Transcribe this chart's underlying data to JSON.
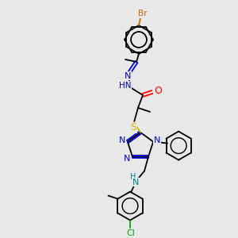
{
  "bg_color": "#e8e8e8",
  "bond_color": "#000000",
  "atom_colors": {
    "N": "#0000cc",
    "O": "#ff0000",
    "S": "#ccbb00",
    "Br": "#cc6600",
    "Cl": "#00aa00",
    "teal": "#008080"
  },
  "figsize": [
    3.0,
    3.0
  ],
  "dpi": 100
}
